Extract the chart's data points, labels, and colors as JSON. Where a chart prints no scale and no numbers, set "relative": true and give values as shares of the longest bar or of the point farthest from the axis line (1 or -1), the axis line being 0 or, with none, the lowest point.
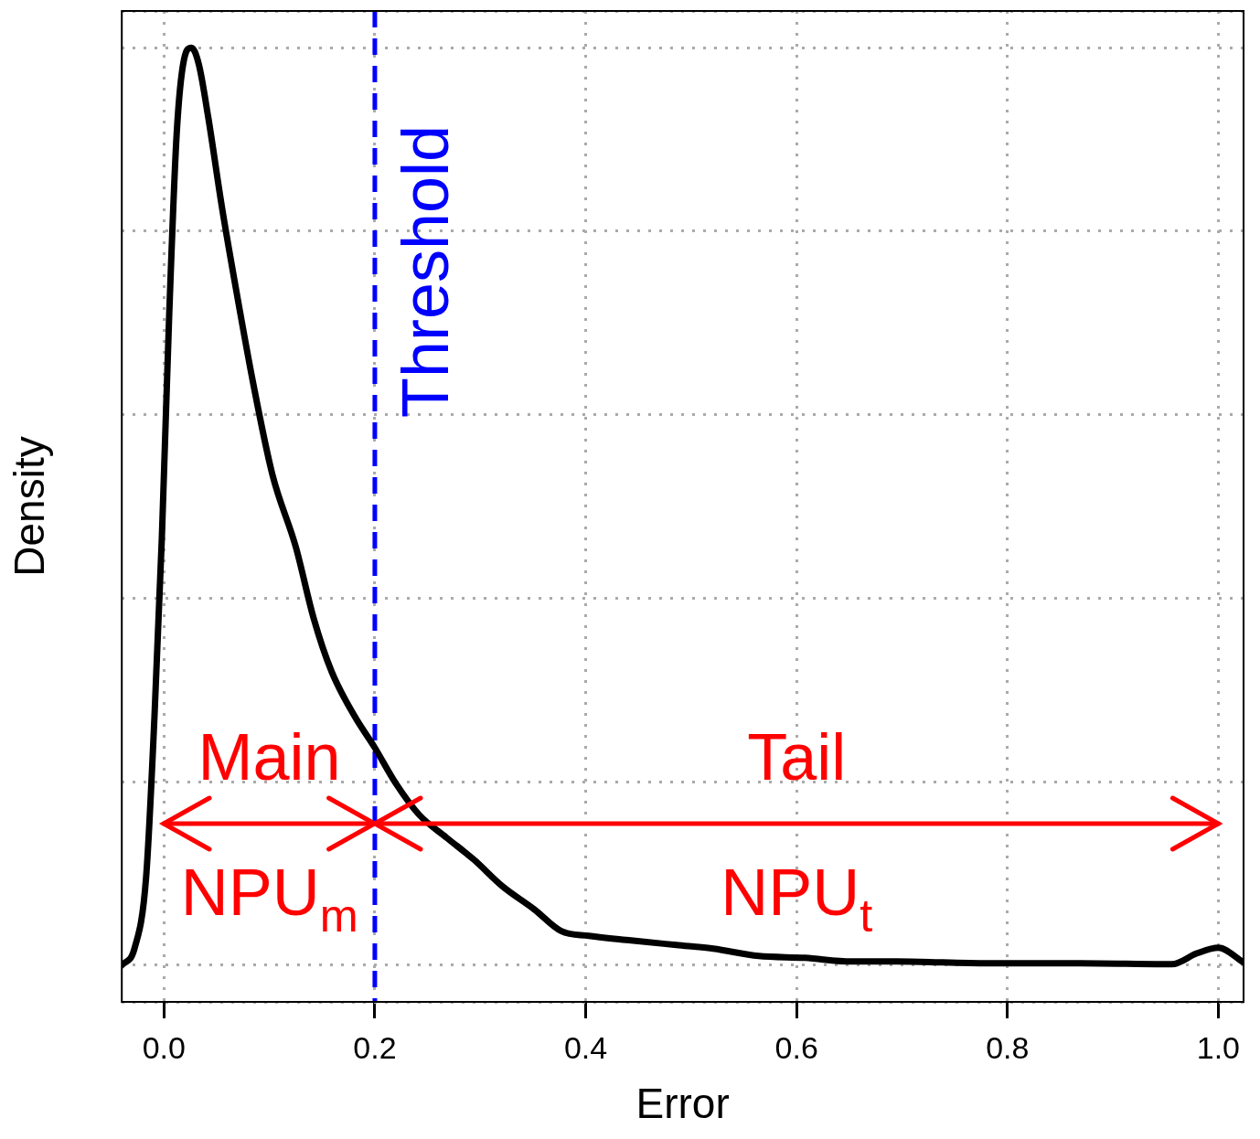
{
  "chart_data": {
    "type": "line",
    "xlabel": "Error",
    "ylabel": "Density",
    "relative": true,
    "xlim": [
      -0.04,
      1.024
    ],
    "xticks": [
      {
        "value": 0,
        "label": "0.0"
      },
      0.2,
      0.4,
      0.6,
      0.8,
      {
        "value": 1,
        "label": "1.0"
      }
    ],
    "grid": true,
    "line_style": "solid",
    "marker": "none",
    "series": [
      {
        "color": "#000000",
        "x": [
          -0.04,
          -0.028,
          -0.017,
          -0.009,
          -0.002,
          0.005,
          0.012,
          0.019,
          0.026,
          0.033,
          0.042,
          0.055,
          0.068,
          0.085,
          0.103,
          0.125,
          0.142,
          0.159,
          0.181,
          0.2,
          0.22,
          0.242,
          0.268,
          0.294,
          0.321,
          0.351,
          0.377,
          0.403,
          0.443,
          0.486,
          0.521,
          0.564,
          0.608,
          0.652,
          0.695,
          0.782,
          0.869,
          0.956,
          0.98,
          1.0,
          1.024
        ],
        "values": [
          0,
          0.018,
          0.095,
          0.271,
          0.466,
          0.71,
          0.905,
          0.987,
          1.0,
          0.982,
          0.924,
          0.826,
          0.739,
          0.632,
          0.534,
          0.456,
          0.378,
          0.32,
          0.271,
          0.237,
          0.198,
          0.164,
          0.139,
          0.115,
          0.086,
          0.061,
          0.037,
          0.032,
          0.027,
          0.022,
          0.018,
          0.01,
          0.008,
          0.004,
          0.004,
          0.002,
          0.002,
          0.001,
          0.013,
          0.019,
          0.003
        ]
      }
    ],
    "ref_lines": [
      {
        "axis": "x",
        "value": 0.2,
        "label": "Threshold",
        "color": "#0000ff",
        "line_style": "dashed"
      }
    ],
    "annotations": [
      "Main",
      "Tail",
      "NPU$_{m}$",
      "NPU$_{t}$"
    ]
  }
}
